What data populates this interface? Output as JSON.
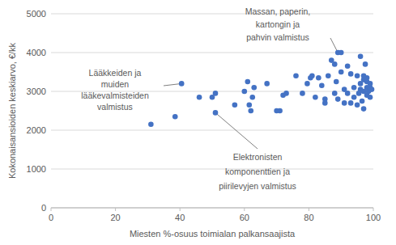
{
  "chart_data": {
    "type": "scatter",
    "x_label": "Miesten %-osuus toimialan palkansaajista",
    "y_label": "Kokonaisansioiden keskiarvo, €/kk",
    "color": "#4472c4",
    "marker": "circle",
    "grid": true,
    "xlim": [
      0,
      100
    ],
    "ylim": [
      0,
      5000
    ],
    "xticks": [
      0,
      20,
      40,
      60,
      80,
      100
    ],
    "yticks": [
      0,
      1000,
      2000,
      3000,
      4000,
      5000
    ],
    "x": [
      31,
      38.5,
      40.5,
      46,
      50,
      51,
      51,
      57,
      60,
      61,
      61.5,
      62.5,
      63,
      62,
      67,
      70,
      71,
      72,
      73,
      76,
      78,
      79.5,
      80.5,
      81,
      82,
      83,
      84,
      85,
      85,
      86,
      87,
      88,
      88,
      88.5,
      89,
      90,
      89,
      90,
      91,
      91,
      92,
      92,
      93,
      93,
      94,
      94,
      95,
      95,
      95.5,
      96,
      96,
      96,
      96.5,
      97,
      97,
      97,
      97.5,
      98,
      98,
      98,
      98.5,
      99,
      99,
      99,
      99.5,
      98,
      97
    ],
    "values": [
      2150,
      2350,
      3200,
      2850,
      2850,
      2950,
      2450,
      2650,
      3000,
      3250,
      2650,
      2850,
      3100,
      2500,
      3200,
      2500,
      2500,
      2900,
      2950,
      3400,
      2950,
      3200,
      3350,
      3400,
      2850,
      3350,
      3150,
      2700,
      2800,
      3400,
      3800,
      3700,
      2950,
      3250,
      4000,
      4000,
      2800,
      3500,
      3050,
      2700,
      3650,
      2950,
      3450,
      2700,
      2850,
      3100,
      3400,
      2650,
      2950,
      3900,
      3200,
      3050,
      2750,
      3000,
      3300,
      2550,
      3700,
      2900,
      3100,
      3250,
      3000,
      3100,
      2850,
      3200,
      3050,
      3350,
      3400
    ],
    "annotations": [
      {
        "lines": [
          "Lääkkeiden ja",
          "muiden",
          "lääkevalmisteiden",
          "valmistus"
        ],
        "x": 40.5,
        "y": 3200
      },
      {
        "lines": [
          "Massan, paperin,",
          "kartongin ja",
          "pahvin valmistus"
        ],
        "x": 89,
        "y": 4000
      },
      {
        "lines": [
          "Elektronisten",
          "komponenttien ja",
          "piirilevyjen valmistus"
        ],
        "x": 51,
        "y": 2450
      }
    ]
  }
}
